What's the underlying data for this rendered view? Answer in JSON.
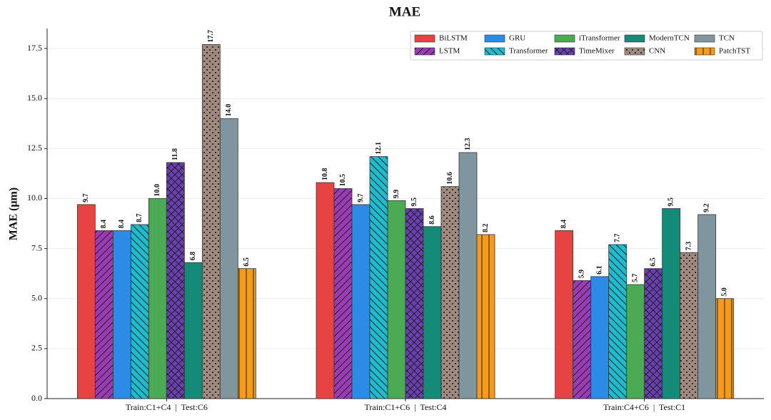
{
  "chart_data": {
    "type": "bar",
    "title": "MAE",
    "ylabel": "MAE (μm)",
    "categories": [
      "Train:C1+C4  |  Test:C6",
      "Train:C1+C6  |  Test:C4",
      "Train:C4+C6  |  Test:C1"
    ],
    "series": [
      {
        "name": "BiLSTM",
        "color": "#e84343",
        "hatch": "",
        "values": [
          9.7,
          10.8,
          8.4
        ],
        "value_labels": [
          "9.7",
          "10.8",
          "8.4"
        ]
      },
      {
        "name": "LSTM",
        "color": "#9b3bb5",
        "hatch": "/",
        "values": [
          8.4,
          10.5,
          5.9
        ],
        "value_labels": [
          "8.4",
          "10.5",
          "5.9"
        ]
      },
      {
        "name": "GRU",
        "color": "#2b8be6",
        "hatch": "",
        "values": [
          8.4,
          9.7,
          6.1
        ],
        "value_labels": [
          "8.4",
          "9.7",
          "6.1"
        ]
      },
      {
        "name": "Transformer",
        "color": "#1fbcd0",
        "hatch": "\\",
        "values": [
          8.7,
          12.1,
          7.7
        ],
        "value_labels": [
          "8.7",
          "12.1",
          "7.7"
        ]
      },
      {
        "name": "iTransformer",
        "color": "#4caa55",
        "hatch": "",
        "values": [
          10.0,
          9.9,
          5.7
        ],
        "value_labels": [
          "10.0",
          "9.9",
          "5.7"
        ]
      },
      {
        "name": "TimeMixer",
        "color": "#6a3fb3",
        "hatch": "x",
        "values": [
          11.8,
          9.5,
          6.5
        ],
        "value_labels": [
          "11.8",
          "9.5",
          "6.5"
        ]
      },
      {
        "name": "ModernTCN",
        "color": "#148a78",
        "hatch": "",
        "values": [
          6.8,
          8.6,
          9.5
        ],
        "value_labels": [
          "6.8",
          "8.6",
          "9.5"
        ]
      },
      {
        "name": "CNN",
        "color": "#a08a80",
        "hatch": ".",
        "values": [
          17.7,
          10.6,
          7.3
        ],
        "value_labels": [
          "17.7",
          "10.6",
          "7.3"
        ]
      },
      {
        "name": "TCN",
        "color": "#7f969f",
        "hatch": "",
        "values": [
          14.0,
          12.3,
          9.2
        ],
        "value_labels": [
          "14.0",
          "12.3",
          "9.2"
        ]
      },
      {
        "name": "PatchTST",
        "color": "#f59a1a",
        "hatch": "|",
        "values": [
          6.5,
          8.2,
          5.0
        ],
        "value_labels": [
          "6.5",
          "8.2",
          "5.0"
        ]
      }
    ],
    "ylim": [
      0,
      18.5
    ],
    "yticks": [
      {
        "value": 0,
        "label": "0.0"
      },
      {
        "value": 2.5,
        "label": "2.5"
      },
      {
        "value": 5,
        "label": "5.0"
      },
      {
        "value": 7.5,
        "label": "7.5"
      },
      {
        "value": 10,
        "label": "10.0"
      },
      {
        "value": 12.5,
        "label": "12.5"
      },
      {
        "value": 15,
        "label": "15.0"
      },
      {
        "value": 17.5,
        "label": "17.5"
      }
    ],
    "grid": true,
    "legend": "upper right"
  }
}
